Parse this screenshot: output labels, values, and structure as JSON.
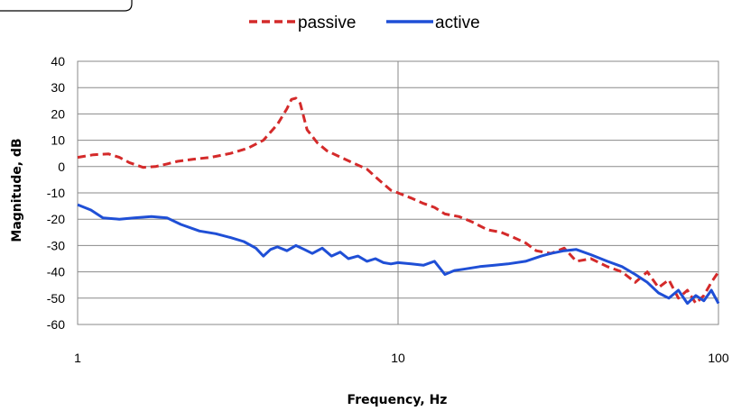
{
  "chart_data": {
    "type": "line",
    "xscale": "log",
    "xlim": [
      1,
      100
    ],
    "ylim": [
      -60,
      40
    ],
    "xlabel": "Frequency, Hz",
    "ylabel": "Magnitude, dB",
    "x_tick_labels": [
      "1",
      "10",
      "100"
    ],
    "y_tick_labels": [
      "40",
      "30",
      "20",
      "10",
      "0",
      "-10",
      "-20",
      "-30",
      "-40",
      "-50",
      "-60"
    ],
    "grid": true,
    "legend_position": "top-center",
    "series": [
      {
        "name": "passive",
        "color": "#d42a2a",
        "style": "dashed",
        "x": [
          1.0,
          1.12,
          1.25,
          1.35,
          1.45,
          1.6,
          1.75,
          1.9,
          2.05,
          2.3,
          2.6,
          3.0,
          3.4,
          3.8,
          4.2,
          4.5,
          4.65,
          4.8,
          4.95,
          5.2,
          5.6,
          6.0,
          6.5,
          7.2,
          8.0,
          8.7,
          9.5,
          10.0,
          11.0,
          12.0,
          13.0,
          14.0,
          15.5,
          17.0,
          19.0,
          21.0,
          23.0,
          25.0,
          27.0,
          30.0,
          33.0,
          36.0,
          40.0,
          45.0,
          50.0,
          55.0,
          60.0,
          65.0,
          70.0,
          75.0,
          80.0,
          85.0,
          90.0,
          95.0,
          100.0
        ],
        "y": [
          3.5,
          4.5,
          4.8,
          3.5,
          1.5,
          -0.3,
          0.0,
          1.0,
          2.0,
          2.8,
          3.5,
          5.0,
          7.0,
          10.0,
          16.0,
          22.0,
          25.5,
          26.0,
          24.0,
          14.0,
          9.0,
          6.0,
          4.0,
          1.5,
          -1.0,
          -5.0,
          -9.0,
          -10.0,
          -12.0,
          -14.0,
          -15.5,
          -18.0,
          -19.0,
          -21.0,
          -24.0,
          -25.0,
          -27.0,
          -29.0,
          -32.0,
          -33.0,
          -31.0,
          -36.0,
          -35.0,
          -38.0,
          -40.0,
          -44.0,
          -40.0,
          -46.0,
          -43.0,
          -50.0,
          -47.0,
          -52.0,
          -49.0,
          -44.0,
          -40.0
        ]
      },
      {
        "name": "active",
        "color": "#1f4fd6",
        "style": "solid",
        "x": [
          1.0,
          1.1,
          1.2,
          1.35,
          1.5,
          1.7,
          1.9,
          2.1,
          2.4,
          2.7,
          3.0,
          3.3,
          3.6,
          3.8,
          4.0,
          4.2,
          4.5,
          4.8,
          5.1,
          5.4,
          5.8,
          6.2,
          6.6,
          7.0,
          7.5,
          8.0,
          8.5,
          9.0,
          9.5,
          10.0,
          11.0,
          12.0,
          13.0,
          14.0,
          15.0,
          16.0,
          18.0,
          20.0,
          22.0,
          25.0,
          28.0,
          30.0,
          33.0,
          36.0,
          40.0,
          45.0,
          50.0,
          55.0,
          60.0,
          65.0,
          70.0,
          75.0,
          80.0,
          85.0,
          90.0,
          95.0,
          100.0
        ],
        "y": [
          -14.5,
          -16.5,
          -19.5,
          -20.0,
          -19.5,
          -19.0,
          -19.5,
          -22.0,
          -24.5,
          -25.5,
          -27.0,
          -28.5,
          -31.0,
          -34.0,
          -31.5,
          -30.5,
          -32.0,
          -30.0,
          -31.5,
          -33.0,
          -31.0,
          -34.0,
          -32.5,
          -35.0,
          -34.0,
          -36.0,
          -35.0,
          -36.5,
          -37.0,
          -36.5,
          -37.0,
          -37.5,
          -36.0,
          -41.0,
          -39.5,
          -39.0,
          -38.0,
          -37.5,
          -37.0,
          -36.0,
          -34.0,
          -33.0,
          -32.0,
          -31.5,
          -33.5,
          -36.0,
          -38.0,
          -41.0,
          -44.0,
          -48.0,
          -50.0,
          -47.0,
          -52.0,
          -49.0,
          -51.0,
          -47.0,
          -52.0
        ]
      }
    ]
  }
}
